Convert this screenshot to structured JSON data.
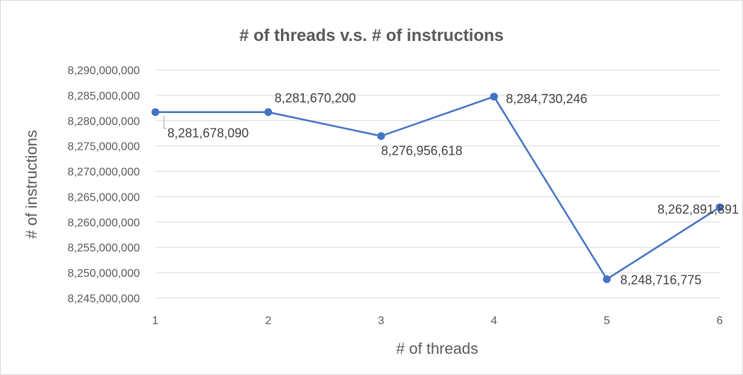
{
  "chart_data": {
    "type": "line",
    "title": "# of threads v.s. # of instructions",
    "xlabel": "# of threads",
    "ylabel": "# of instructions",
    "x": [
      1,
      2,
      3,
      4,
      5,
      6
    ],
    "x_tick_labels": [
      "1",
      "2",
      "3",
      "4",
      "5",
      "6"
    ],
    "y_tick_labels": [
      "8,245,000,000",
      "8,250,000,000",
      "8,255,000,000",
      "8,260,000,000",
      "8,265,000,000",
      "8,270,000,000",
      "8,275,000,000",
      "8,280,000,000",
      "8,285,000,000",
      "8,290,000,000"
    ],
    "ylim": [
      8245000000,
      8290000000
    ],
    "ytick_step": 5000000,
    "grid": true,
    "legend": "none",
    "series": [
      {
        "values": [
          8281678090,
          8281670200,
          8276956618,
          8284730246,
          8248716775,
          8262891891
        ],
        "data_labels": [
          "8,281,678,090",
          "8,281,670,200",
          "8,276,956,618",
          "8,284,730,246",
          "8,248,716,775",
          "8,262,891,891"
        ],
        "color": "#4472c4"
      }
    ]
  }
}
